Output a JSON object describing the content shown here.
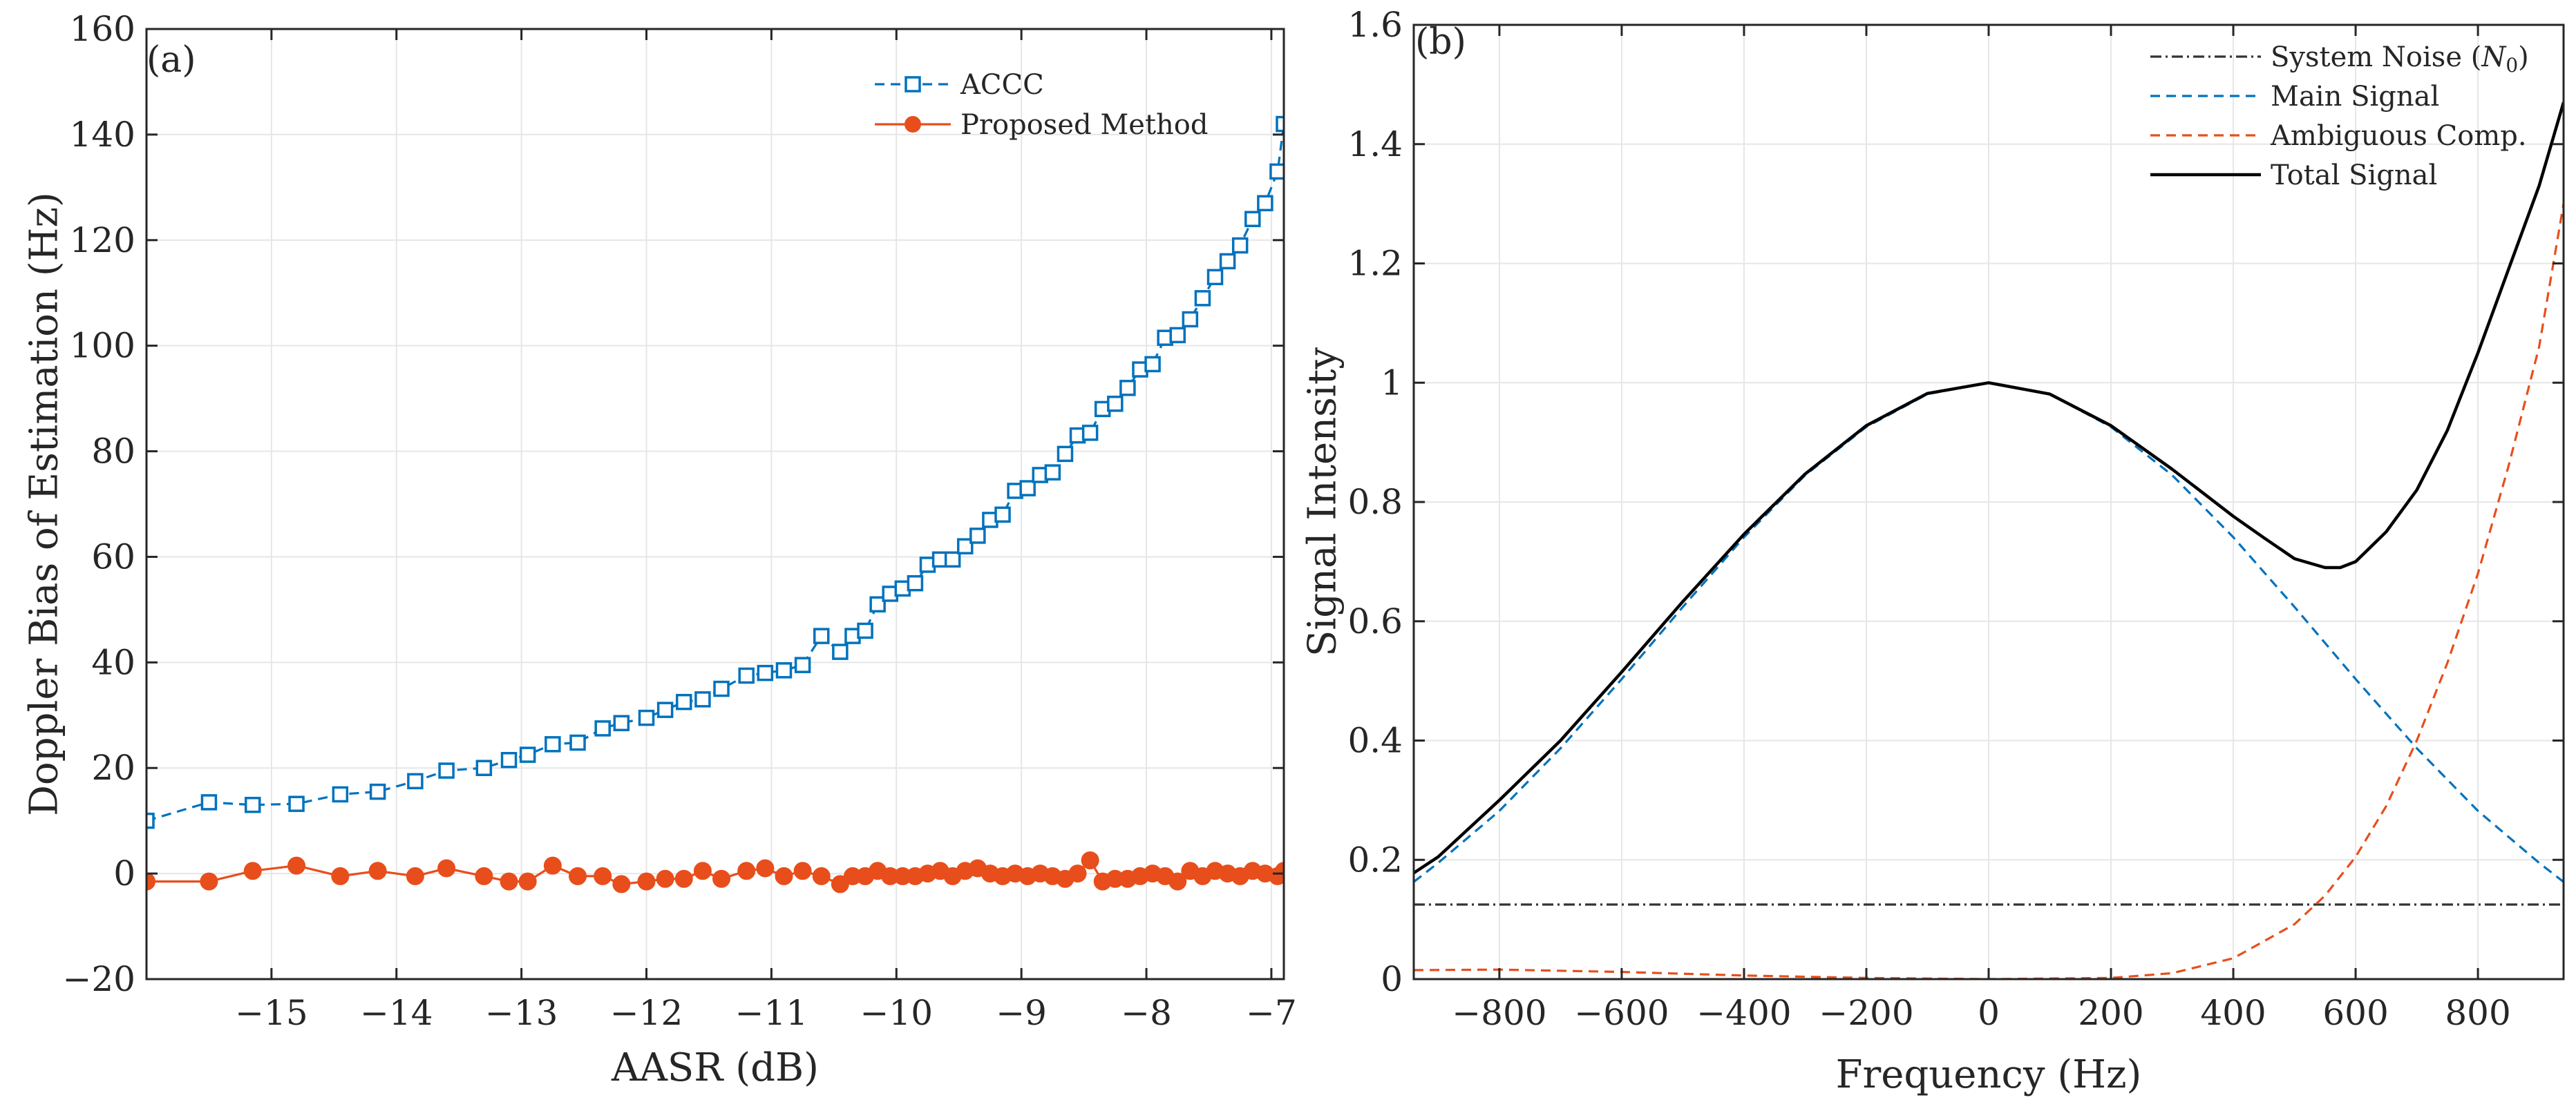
{
  "chart_data": [
    {
      "type": "line",
      "panel_label": "(a)",
      "xlabel": "AASR (dB)",
      "ylabel": "Doppler Bias of Estimation (Hz)",
      "xlim": [
        -16.0,
        -6.9
      ],
      "ylim": [
        -20,
        160
      ],
      "xticks": [
        -15,
        -14,
        -13,
        -12,
        -11,
        -10,
        -9,
        -8,
        -7
      ],
      "xtick_labels": [
        "−15",
        "−14",
        "−13",
        "−12",
        "−11",
        "−10",
        "−9",
        "−8",
        "−7"
      ],
      "yticks": [
        -20,
        0,
        20,
        40,
        60,
        80,
        100,
        120,
        140,
        160
      ],
      "ytick_labels": [
        "−20",
        "0",
        "20",
        "40",
        "60",
        "80",
        "100",
        "120",
        "140",
        "160"
      ],
      "grid": true,
      "legend_position": "top-right",
      "series": [
        {
          "name": "ACCC",
          "color": "#0072BD",
          "style": "dashed",
          "marker": "square",
          "x": [
            -16.0,
            -15.5,
            -15.15,
            -14.8,
            -14.45,
            -14.15,
            -13.85,
            -13.6,
            -13.3,
            -13.1,
            -12.95,
            -12.75,
            -12.55,
            -12.35,
            -12.2,
            -12.0,
            -11.85,
            -11.7,
            -11.55,
            -11.4,
            -11.2,
            -11.05,
            -10.9,
            -10.75,
            -10.6,
            -10.45,
            -10.35,
            -10.25,
            -10.15,
            -10.05,
            -9.95,
            -9.85,
            -9.75,
            -9.65,
            -9.55,
            -9.45,
            -9.35,
            -9.25,
            -9.15,
            -9.05,
            -8.95,
            -8.85,
            -8.75,
            -8.65,
            -8.55,
            -8.45,
            -8.35,
            -8.25,
            -8.15,
            -8.05,
            -7.95,
            -7.85,
            -7.75,
            -7.65,
            -7.55,
            -7.45,
            -7.35,
            -7.25,
            -7.15,
            -7.05,
            -6.95,
            -6.9
          ],
          "values": [
            10,
            13.5,
            13,
            13.2,
            15,
            15.5,
            17.5,
            19.5,
            20,
            21.5,
            22.5,
            24.5,
            24.8,
            27.5,
            28.5,
            29.5,
            31,
            32.5,
            33,
            35,
            37.5,
            38,
            38.5,
            39.5,
            45,
            42,
            45,
            46,
            51,
            53,
            54,
            55,
            58.5,
            59.5,
            59.5,
            62,
            64,
            67,
            68,
            72.5,
            73,
            75.5,
            76,
            79.5,
            83,
            83.5,
            88,
            89,
            92,
            95.5,
            96.5,
            101.5,
            102,
            105,
            109,
            113,
            116,
            119,
            124,
            127,
            133,
            142
          ]
        },
        {
          "name": "Proposed Method",
          "color": "#E84E1B",
          "style": "solid",
          "marker": "circle",
          "x": [
            -16.0,
            -15.5,
            -15.15,
            -14.8,
            -14.45,
            -14.15,
            -13.85,
            -13.6,
            -13.3,
            -13.1,
            -12.95,
            -12.75,
            -12.55,
            -12.35,
            -12.2,
            -12.0,
            -11.85,
            -11.7,
            -11.55,
            -11.4,
            -11.2,
            -11.05,
            -10.9,
            -10.75,
            -10.6,
            -10.45,
            -10.35,
            -10.25,
            -10.15,
            -10.05,
            -9.95,
            -9.85,
            -9.75,
            -9.65,
            -9.55,
            -9.45,
            -9.35,
            -9.25,
            -9.15,
            -9.05,
            -8.95,
            -8.85,
            -8.75,
            -8.65,
            -8.55,
            -8.45,
            -8.35,
            -8.25,
            -8.15,
            -8.05,
            -7.95,
            -7.85,
            -7.75,
            -7.65,
            -7.55,
            -7.45,
            -7.35,
            -7.25,
            -7.15,
            -7.05,
            -6.95,
            -6.9
          ],
          "values": [
            -1.5,
            -1.5,
            0.5,
            1.5,
            -0.5,
            0.5,
            -0.5,
            1,
            -0.5,
            -1.5,
            -1.5,
            1.5,
            -0.5,
            -0.5,
            -2,
            -1.5,
            -1,
            -1,
            0.5,
            -1,
            0.5,
            1,
            -0.5,
            0.5,
            -0.5,
            -2,
            -0.5,
            -0.5,
            0.5,
            -0.5,
            -0.5,
            -0.5,
            0,
            0.5,
            -0.5,
            0.5,
            1,
            0,
            -0.5,
            0,
            -0.5,
            0,
            -0.5,
            -1,
            0,
            2.5,
            -1.5,
            -1,
            -1,
            -0.5,
            0,
            -0.5,
            -1.5,
            0.5,
            -0.5,
            0.5,
            0,
            -0.5,
            0.5,
            0,
            -0.5,
            0.5
          ]
        }
      ]
    },
    {
      "type": "line",
      "panel_label": "(b)",
      "xlabel": "Frequency (Hz)",
      "ylabel": "Signal Intensity",
      "xlim": [
        -940,
        940
      ],
      "ylim": [
        0,
        1.6
      ],
      "xticks": [
        -800,
        -600,
        -400,
        -200,
        0,
        200,
        400,
        600,
        800
      ],
      "xtick_labels": [
        "−800",
        "−600",
        "−400",
        "−200",
        "0",
        "200",
        "400",
        "600",
        "800"
      ],
      "yticks": [
        0,
        0.2,
        0.4,
        0.6,
        0.8,
        1.0,
        1.2,
        1.4,
        1.6
      ],
      "ytick_labels": [
        "0",
        "0.2",
        "0.4",
        "0.6",
        "0.8",
        "1",
        "1.2",
        "1.4",
        "1.6"
      ],
      "grid": true,
      "legend_position": "top-right",
      "series": [
        {
          "name": "System Noise (N0)",
          "legend_label": "System Noise (",
          "legend_math": "N",
          "legend_sub": "0",
          "legend_close": ")",
          "color": "#333333",
          "style": "dashdot",
          "x": [
            -940,
            940
          ],
          "values": [
            0.125,
            0.125
          ]
        },
        {
          "name": "Main Signal",
          "color": "#0072BD",
          "style": "dashed",
          "x": [
            -940,
            -900,
            -800,
            -700,
            -600,
            -500,
            -400,
            -300,
            -200,
            -100,
            0,
            100,
            200,
            300,
            400,
            500,
            600,
            700,
            800,
            900,
            940
          ],
          "values": [
            0.163,
            0.195,
            0.282,
            0.387,
            0.503,
            0.624,
            0.741,
            0.845,
            0.926,
            0.981,
            1.0,
            0.981,
            0.926,
            0.845,
            0.741,
            0.624,
            0.503,
            0.387,
            0.282,
            0.195,
            0.163
          ]
        },
        {
          "name": "Ambiguous Comp.",
          "color": "#E84E1B",
          "style": "dashed",
          "x": [
            -940,
            -800,
            -600,
            -400,
            -200,
            0,
            200,
            300,
            400,
            500,
            550,
            600,
            650,
            700,
            750,
            800,
            850,
            900,
            940
          ],
          "values": [
            0.015,
            0.016,
            0.012,
            0.006,
            0.002,
            0.0,
            0.002,
            0.01,
            0.035,
            0.092,
            0.14,
            0.205,
            0.29,
            0.4,
            0.53,
            0.68,
            0.86,
            1.06,
            1.3
          ]
        },
        {
          "name": "Total Signal",
          "color": "#000000",
          "style": "solid",
          "x": [
            -940,
            -900,
            -800,
            -700,
            -600,
            -500,
            -400,
            -300,
            -200,
            -100,
            0,
            100,
            200,
            300,
            400,
            450,
            500,
            550,
            575,
            600,
            650,
            700,
            750,
            800,
            850,
            900,
            940
          ],
          "values": [
            0.178,
            0.205,
            0.3,
            0.4,
            0.515,
            0.633,
            0.746,
            0.847,
            0.928,
            0.982,
            1.0,
            0.981,
            0.928,
            0.855,
            0.776,
            0.74,
            0.705,
            0.69,
            0.69,
            0.7,
            0.75,
            0.82,
            0.92,
            1.05,
            1.19,
            1.33,
            1.47
          ]
        }
      ]
    }
  ]
}
